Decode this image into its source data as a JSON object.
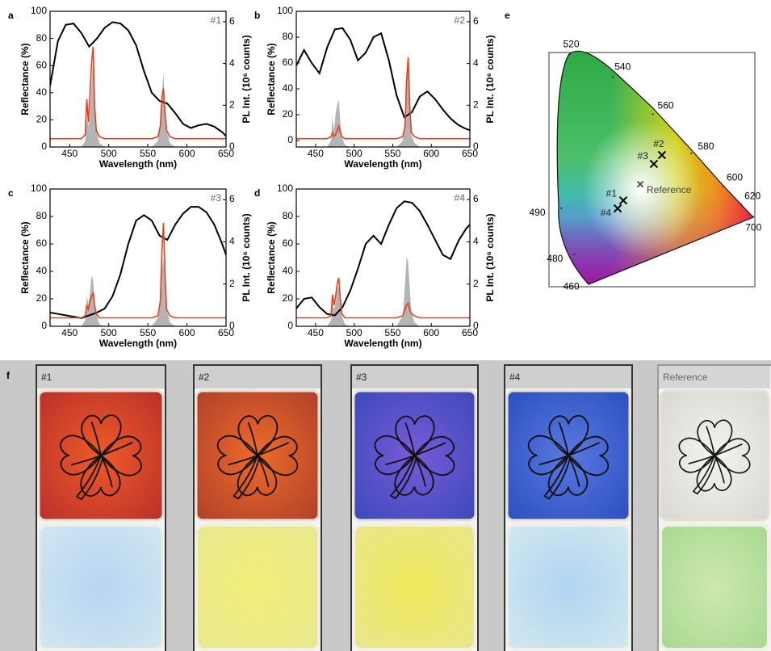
{
  "chart_data": [
    {
      "type": "line",
      "panel_label": "a",
      "annotation": "#1",
      "xlabel": "Wavelength (nm)",
      "ylabel": "Reflectance (%)",
      "y2label": "PL Int. (10⁶ counts)",
      "xlim": [
        425,
        650
      ],
      "xticks": [
        450,
        500,
        550,
        600,
        650
      ],
      "ylim": [
        0,
        100
      ],
      "yticks": [
        0,
        20,
        40,
        60,
        80,
        100
      ],
      "y2lim": [
        0,
        6.5
      ],
      "y2ticks": [
        0,
        2,
        4,
        6
      ],
      "series": [
        {
          "style": "area",
          "axis": "y2",
          "color": "#b4b4b4",
          "x": [
            425,
            465,
            470,
            472,
            474,
            476,
            478,
            480,
            482,
            484,
            488,
            495,
            555,
            563,
            566,
            568,
            570,
            572,
            574,
            578,
            585,
            650
          ],
          "values": [
            0,
            0,
            0.3,
            1.4,
            1.0,
            1.6,
            3.0,
            4.3,
            2.2,
            0.8,
            0.2,
            0,
            0,
            0.3,
            1.2,
            2.6,
            3.5,
            2.0,
            0.8,
            0.2,
            0,
            0
          ]
        },
        {
          "style": "line",
          "axis": "y",
          "color": "#000000",
          "x": [
            425,
            435,
            445,
            455,
            465,
            475,
            485,
            495,
            505,
            515,
            525,
            535,
            545,
            555,
            565,
            575,
            585,
            595,
            605,
            615,
            625,
            635,
            645,
            650
          ],
          "values": [
            45,
            78,
            90,
            91,
            84,
            74,
            80,
            88,
            92,
            91,
            86,
            75,
            56,
            40,
            34,
            32,
            25,
            17,
            14,
            16,
            17,
            15,
            11,
            8
          ]
        },
        {
          "style": "line",
          "axis": "y2",
          "color": "#e8401c",
          "x": [
            425,
            465,
            470,
            472,
            474,
            476,
            478,
            480,
            482,
            484,
            488,
            495,
            555,
            563,
            566,
            568,
            570,
            572,
            574,
            578,
            585,
            650
          ],
          "values": [
            0.4,
            0.4,
            0.6,
            2.3,
            1.2,
            2.5,
            4.0,
            4.8,
            2.0,
            0.8,
            0.5,
            0.4,
            0.4,
            0.5,
            1.0,
            2.4,
            2.8,
            1.6,
            0.8,
            0.5,
            0.4,
            0.4
          ]
        }
      ]
    },
    {
      "type": "line",
      "panel_label": "b",
      "annotation": "#2",
      "xlabel": "Wavelength (nm)",
      "ylabel": "Reflectance (%)",
      "y2label": "PL Int. (10⁶ counts)",
      "xlim": [
        425,
        650
      ],
      "xticks": [
        450,
        500,
        550,
        600,
        650
      ],
      "ylim": [
        -5,
        100
      ],
      "yticks": [
        0,
        20,
        40,
        60,
        80,
        100
      ],
      "y2lim": [
        0,
        6.5
      ],
      "y2ticks": [
        0,
        2,
        4,
        6
      ],
      "series": [
        {
          "style": "area",
          "axis": "y2",
          "color": "#b4b4b4",
          "x": [
            425,
            465,
            470,
            472,
            474,
            476,
            478,
            480,
            482,
            484,
            488,
            495,
            555,
            563,
            566,
            568,
            570,
            572,
            574,
            578,
            585,
            650
          ],
          "values": [
            0,
            0,
            0.3,
            1.4,
            0.8,
            1.6,
            2.0,
            2.3,
            1.2,
            0.5,
            0.1,
            0,
            0,
            0.3,
            1.2,
            3.5,
            4.0,
            1.8,
            0.6,
            0.2,
            0,
            0
          ]
        },
        {
          "style": "line",
          "axis": "y",
          "color": "#000000",
          "x": [
            425,
            435,
            445,
            455,
            465,
            475,
            485,
            495,
            505,
            515,
            525,
            535,
            545,
            555,
            565,
            575,
            585,
            595,
            605,
            615,
            625,
            635,
            645,
            650
          ],
          "values": [
            58,
            70,
            60,
            52,
            72,
            86,
            87,
            78,
            62,
            68,
            80,
            83,
            62,
            35,
            18,
            22,
            34,
            38,
            32,
            24,
            17,
            12,
            9,
            8
          ]
        },
        {
          "style": "line",
          "axis": "y2",
          "color": "#e8401c",
          "x": [
            425,
            465,
            470,
            472,
            474,
            476,
            478,
            480,
            482,
            484,
            488,
            495,
            555,
            563,
            566,
            568,
            570,
            572,
            574,
            578,
            585,
            650
          ],
          "values": [
            0.4,
            0.4,
            0.5,
            0.7,
            0.5,
            0.6,
            0.8,
            1.0,
            0.7,
            0.5,
            0.4,
            0.4,
            0.4,
            0.5,
            1.0,
            3.2,
            4.3,
            2.0,
            0.7,
            0.5,
            0.4,
            0.4
          ]
        }
      ]
    },
    {
      "type": "line",
      "panel_label": "c",
      "annotation": "#3",
      "xlabel": "Wavelength (nm)",
      "ylabel": "Reflectance (%)",
      "y2label": "PL Int. (10⁶ counts)",
      "xlim": [
        425,
        650
      ],
      "xticks": [
        450,
        500,
        550,
        600,
        650
      ],
      "ylim": [
        0,
        100
      ],
      "yticks": [
        0,
        20,
        40,
        60,
        80,
        100
      ],
      "y2lim": [
        0,
        6.5
      ],
      "y2ticks": [
        0,
        2,
        4,
        6
      ],
      "series": [
        {
          "style": "area",
          "axis": "y2",
          "color": "#b4b4b4",
          "x": [
            425,
            465,
            470,
            472,
            474,
            476,
            478,
            480,
            482,
            484,
            488,
            495,
            555,
            563,
            566,
            568,
            570,
            572,
            574,
            578,
            585,
            650
          ],
          "values": [
            0,
            0,
            0.3,
            1.5,
            1.0,
            1.6,
            2.4,
            2.2,
            1.2,
            0.6,
            0.1,
            0,
            0,
            0.4,
            1.3,
            2.8,
            3.2,
            2.2,
            0.8,
            0.2,
            0,
            0
          ]
        },
        {
          "style": "line",
          "axis": "y",
          "color": "#000000",
          "x": [
            425,
            435,
            445,
            455,
            465,
            475,
            485,
            495,
            505,
            515,
            525,
            535,
            545,
            555,
            565,
            575,
            585,
            595,
            605,
            615,
            625,
            635,
            645,
            650
          ],
          "values": [
            10,
            9,
            8,
            7,
            6,
            8,
            10,
            13,
            22,
            38,
            60,
            77,
            81,
            77,
            66,
            63,
            74,
            82,
            87,
            87,
            83,
            74,
            60,
            52
          ]
        },
        {
          "style": "line",
          "axis": "y2",
          "color": "#e8401c",
          "x": [
            425,
            465,
            470,
            472,
            474,
            476,
            478,
            480,
            482,
            484,
            488,
            495,
            555,
            563,
            566,
            568,
            570,
            572,
            574,
            578,
            585,
            650
          ],
          "values": [
            0.4,
            0.4,
            0.5,
            1.0,
            0.8,
            1.2,
            1.4,
            1.6,
            1.0,
            0.6,
            0.4,
            0.4,
            0.4,
            0.5,
            1.2,
            3.6,
            4.9,
            2.5,
            0.8,
            0.5,
            0.4,
            0.4
          ]
        }
      ]
    },
    {
      "type": "line",
      "panel_label": "d",
      "annotation": "#4",
      "xlabel": "Wavelength (nm)",
      "ylabel": "Reflectance (%)",
      "y2label": "PL Int. (10⁶ counts)",
      "xlim": [
        425,
        650
      ],
      "xticks": [
        450,
        500,
        550,
        600,
        650
      ],
      "ylim": [
        0,
        100
      ],
      "yticks": [
        0,
        20,
        40,
        60,
        80,
        100
      ],
      "y2lim": [
        0,
        6.5
      ],
      "y2ticks": [
        0,
        2,
        4,
        6
      ],
      "series": [
        {
          "style": "area",
          "axis": "y2",
          "color": "#b4b4b4",
          "x": [
            425,
            465,
            470,
            472,
            474,
            476,
            478,
            480,
            482,
            484,
            488,
            495,
            555,
            563,
            566,
            568,
            570,
            572,
            574,
            578,
            585,
            650
          ],
          "values": [
            0,
            0,
            0.3,
            1.2,
            0.8,
            1.1,
            1.7,
            1.9,
            1.1,
            0.5,
            0.1,
            0,
            0,
            0.5,
            2.0,
            3.3,
            3.0,
            1.8,
            0.7,
            0.2,
            0,
            0
          ]
        },
        {
          "style": "line",
          "axis": "y",
          "color": "#000000",
          "x": [
            425,
            435,
            445,
            455,
            465,
            475,
            485,
            495,
            505,
            515,
            525,
            535,
            545,
            555,
            565,
            575,
            585,
            595,
            605,
            615,
            625,
            635,
            645,
            650
          ],
          "values": [
            13,
            20,
            21,
            14,
            9,
            8,
            14,
            26,
            42,
            60,
            66,
            60,
            74,
            86,
            91,
            90,
            84,
            74,
            63,
            52,
            49,
            62,
            71,
            74
          ]
        },
        {
          "style": "line",
          "axis": "y2",
          "color": "#e8401c",
          "x": [
            425,
            465,
            470,
            472,
            474,
            476,
            478,
            480,
            482,
            484,
            488,
            495,
            555,
            563,
            566,
            568,
            570,
            572,
            574,
            578,
            585,
            650
          ],
          "values": [
            0.4,
            0.4,
            0.5,
            1.5,
            1.0,
            1.4,
            2.0,
            2.3,
            1.3,
            0.6,
            0.4,
            0.4,
            0.4,
            0.5,
            0.8,
            1.0,
            1.1,
            0.8,
            0.6,
            0.5,
            0.4,
            0.4
          ]
        }
      ]
    },
    {
      "type": "scatter",
      "panel_label": "e",
      "xlim": [
        0,
        0.74
      ],
      "ylim": [
        0.02,
        0.84
      ],
      "locus": {
        "wavelengths": [
          460,
          480,
          490,
          520,
          540,
          560,
          580,
          600,
          620,
          700
        ],
        "x": [
          0.144,
          0.091,
          0.045,
          0.074,
          0.23,
          0.373,
          0.512,
          0.627,
          0.691,
          0.735
        ],
        "y": [
          0.03,
          0.133,
          0.295,
          0.834,
          0.754,
          0.624,
          0.487,
          0.372,
          0.308,
          0.265
        ]
      },
      "series": [
        {
          "color": "#000000",
          "labels": [
            "#1",
            "#2",
            "#3",
            "#4"
          ],
          "x": [
            0.267,
            0.406,
            0.377,
            0.247
          ],
          "values": [
            0.322,
            0.481,
            0.45,
            0.294
          ]
        },
        {
          "color": "#555555",
          "labels": [
            "Reference"
          ],
          "x": [
            0.328
          ],
          "values": [
            0.379
          ]
        }
      ]
    }
  ],
  "photos": {
    "panel_label": "f",
    "labels": [
      "#1",
      "#2",
      "#3",
      "#4",
      "Reference"
    ]
  }
}
